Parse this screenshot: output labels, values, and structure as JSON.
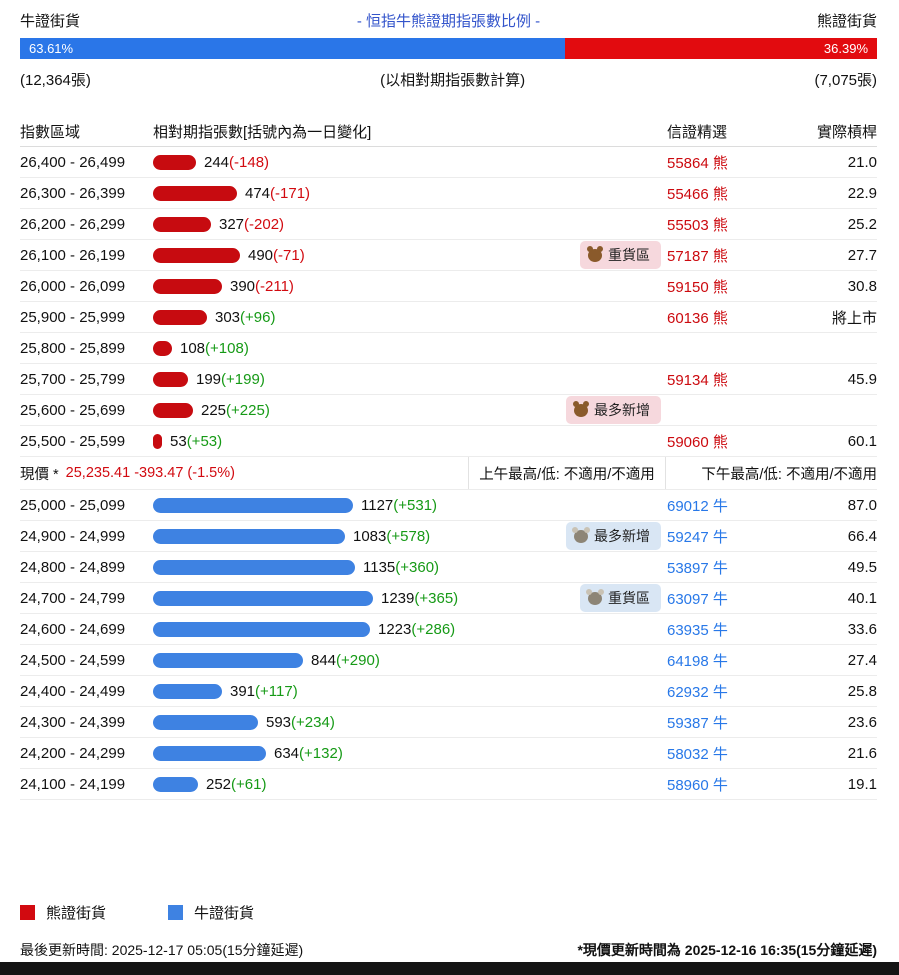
{
  "header": {
    "bull_label": "牛證街貨",
    "title": "- 恒指牛熊證期指張數比例 -",
    "bear_label": "熊證街貨",
    "bull_pct": "63.61%",
    "bear_pct": "36.39%",
    "bull_pct_value": 63.61,
    "bear_pct_value": 36.39,
    "bull_total": "(12,364張)",
    "calc_basis": "(以相對期指張數計算)",
    "bear_total": "(7,075張)"
  },
  "columns": {
    "range": "指數區域",
    "contracts": "相對期指張數[括號內為一日變化]",
    "featured": "信證精選",
    "leverage": "實際槓桿"
  },
  "table": {
    "bear_rows": [
      {
        "range": "26,400 - 26,499",
        "value": 244,
        "value_label": "244",
        "change_label": "(-148)",
        "cert": "55864 熊",
        "leverage": "21.0"
      },
      {
        "range": "26,300 - 26,399",
        "value": 474,
        "value_label": "474",
        "change_label": "(-171)",
        "cert": "55466 熊",
        "leverage": "22.9"
      },
      {
        "range": "26,200 - 26,299",
        "value": 327,
        "value_label": "327",
        "change_label": "(-202)",
        "cert": "55503 熊",
        "leverage": "25.2"
      },
      {
        "range": "26,100 - 26,199",
        "value": 490,
        "value_label": "490",
        "change_label": "(-71)",
        "badge": "重貨區",
        "cert": "57187 熊",
        "leverage": "27.7"
      },
      {
        "range": "26,000 - 26,099",
        "value": 390,
        "value_label": "390",
        "change_label": "(-211)",
        "cert": "59150 熊",
        "leverage": "30.8"
      },
      {
        "range": "25,900 - 25,999",
        "value": 303,
        "value_label": "303",
        "change_label": "(+96)",
        "cert": "60136 熊",
        "leverage": "將上市"
      },
      {
        "range": "25,800 - 25,899",
        "value": 108,
        "value_label": "108",
        "change_label": "(+108)",
        "cert": "",
        "leverage": ""
      },
      {
        "range": "25,700 - 25,799",
        "value": 199,
        "value_label": "199",
        "change_label": "(+199)",
        "cert": "59134 熊",
        "leverage": "45.9"
      },
      {
        "range": "25,600 - 25,699",
        "value": 225,
        "value_label": "225",
        "change_label": "(+225)",
        "badge": "最多新增",
        "cert": "",
        "leverage": ""
      },
      {
        "range": "25,500 - 25,599",
        "value": 53,
        "value_label": "53",
        "change_label": "(+53)",
        "cert": "59060 熊",
        "leverage": "60.1"
      }
    ],
    "price_row": {
      "label": "現價 *",
      "value": "25,235.41 -393.47 (-1.5%)",
      "am": "上午最高/低: 不適用/不適用",
      "pm": "下午最高/低: 不適用/不適用"
    },
    "bull_rows": [
      {
        "range": "25,000 - 25,099",
        "value": 1127,
        "value_label": "1127",
        "change_label": "(+531)",
        "cert": "69012 牛",
        "leverage": "87.0"
      },
      {
        "range": "24,900 - 24,999",
        "value": 1083,
        "value_label": "1083",
        "change_label": "(+578)",
        "badge": "最多新增",
        "cert": "59247 牛",
        "leverage": "66.4"
      },
      {
        "range": "24,800 - 24,899",
        "value": 1135,
        "value_label": "1135",
        "change_label": "(+360)",
        "cert": "53897 牛",
        "leverage": "49.5"
      },
      {
        "range": "24,700 - 24,799",
        "value": 1239,
        "value_label": "1239",
        "change_label": "(+365)",
        "badge": "重貨區",
        "cert": "63097 牛",
        "leverage": "40.1"
      },
      {
        "range": "24,600 - 24,699",
        "value": 1223,
        "value_label": "1223",
        "change_label": "(+286)",
        "cert": "63935 牛",
        "leverage": "33.6"
      },
      {
        "range": "24,500 - 24,599",
        "value": 844,
        "value_label": "844",
        "change_label": "(+290)",
        "cert": "64198 牛",
        "leverage": "27.4"
      },
      {
        "range": "24,400 - 24,499",
        "value": 391,
        "value_label": "391",
        "change_label": "(+117)",
        "cert": "62932 牛",
        "leverage": "25.8"
      },
      {
        "range": "24,300 - 24,399",
        "value": 593,
        "value_label": "593",
        "change_label": "(+234)",
        "cert": "59387 牛",
        "leverage": "23.6"
      },
      {
        "range": "24,200 - 24,299",
        "value": 634,
        "value_label": "634",
        "change_label": "(+132)",
        "cert": "58032 牛",
        "leverage": "21.6"
      },
      {
        "range": "24,100 - 24,199",
        "value": 252,
        "value_label": "252",
        "change_label": "(+61)",
        "cert": "58960 牛",
        "leverage": "19.1"
      }
    ]
  },
  "legend": {
    "bear": "熊證街貨",
    "bull": "牛證街貨"
  },
  "footer": {
    "updated": "最後更新時間: 2025-12-17 05:05(15分鐘延遲)",
    "price_updated": "*現價更新時間為 2025-12-16 16:35(15分鐘延遲)"
  },
  "icons": {
    "bear_badge": "bear-face-icon",
    "bull_badge": "ox-face-icon"
  },
  "colors": {
    "bull_bar": "#3e82e2",
    "bear_bar": "#c70b10",
    "ratio_bull": "#2a76e8",
    "ratio_bear": "#e20b0f",
    "title_blue": "#3354cb",
    "positive_change": "#169a16",
    "negative_change": "#d20a10"
  },
  "chart_data": {
    "type": "bar",
    "orientation": "horizontal",
    "title": "- 恒指牛熊證期指張數比例 -",
    "subtitle": "(以相對期指張數計算)",
    "xlabel": "相對期指張數[括號內為一日變化]",
    "ylabel": "指數區域",
    "legend_position": "bottom",
    "grid": false,
    "series": [
      {
        "name": "熊證街貨",
        "color": "#c70b10",
        "total_contracts": 7075,
        "share_pct": 36.39,
        "categories": [
          "26,400 - 26,499",
          "26,300 - 26,399",
          "26,200 - 26,299",
          "26,100 - 26,199",
          "26,000 - 26,099",
          "25,900 - 25,999",
          "25,800 - 25,899",
          "25,700 - 25,799",
          "25,600 - 25,699",
          "25,500 - 25,599"
        ],
        "values": [
          244,
          474,
          327,
          490,
          390,
          303,
          108,
          199,
          225,
          53
        ],
        "one_day_change": [
          -148,
          -171,
          -202,
          -71,
          -211,
          96,
          108,
          199,
          225,
          53
        ],
        "heavy_zone": "26,100 - 26,199",
        "most_added": "25,600 - 25,699"
      },
      {
        "name": "牛證街貨",
        "color": "#3e82e2",
        "total_contracts": 12364,
        "share_pct": 63.61,
        "categories": [
          "25,000 - 25,099",
          "24,900 - 24,999",
          "24,800 - 24,899",
          "24,700 - 24,799",
          "24,600 - 24,699",
          "24,500 - 24,599",
          "24,400 - 24,499",
          "24,300 - 24,399",
          "24,200 - 24,299",
          "24,100 - 24,199"
        ],
        "values": [
          1127,
          1083,
          1135,
          1239,
          1223,
          844,
          391,
          593,
          634,
          252
        ],
        "one_day_change": [
          531,
          578,
          360,
          365,
          286,
          290,
          117,
          234,
          132,
          61
        ],
        "heavy_zone": "24,700 - 24,799",
        "most_added": "24,900 - 24,999"
      }
    ],
    "current_price": 25235.41,
    "price_change": -393.47,
    "price_change_pct": "-1.5%"
  }
}
